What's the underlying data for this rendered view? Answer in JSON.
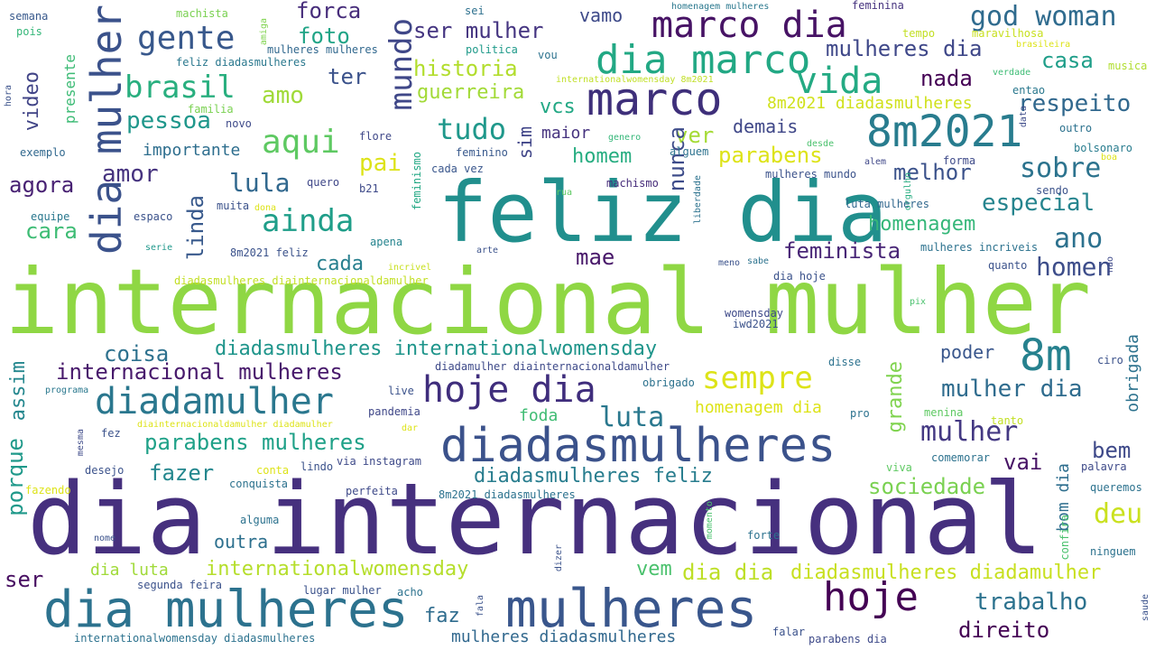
{
  "words": [
    {
      "text": "dia internacional",
      "color": "#46307e"
    },
    {
      "text": "internacional mulher",
      "color": "#8fd744"
    },
    {
      "text": "feliz dia",
      "color": "#218f8d"
    },
    {
      "text": "diadasmulheres",
      "color": "#3b528b"
    },
    {
      "text": "mulheres",
      "color": "#39568c"
    },
    {
      "text": "dia mulheres",
      "color": "#2c728e"
    },
    {
      "text": "marco",
      "color": "#3e2f7a"
    },
    {
      "text": "dia mulher",
      "color": "#3b528b"
    },
    {
      "text": "8m2021",
      "color": "#287c8e"
    },
    {
      "text": "marco dia",
      "color": "#471365"
    },
    {
      "text": "dia marco",
      "color": "#22a884"
    },
    {
      "text": "hoje dia",
      "color": "#3f2d7c"
    },
    {
      "text": "diadamulher",
      "color": "#2a778e"
    },
    {
      "text": "8m",
      "color": "#26818e"
    },
    {
      "text": "hoje",
      "color": "#440154"
    },
    {
      "text": "vida",
      "color": "#24aa83"
    },
    {
      "text": "gente",
      "color": "#38588c"
    },
    {
      "text": "brasil",
      "color": "#29af7f"
    },
    {
      "text": "aqui",
      "color": "#5ec962"
    },
    {
      "text": "ainda",
      "color": "#1f9e89"
    },
    {
      "text": "tudo",
      "color": "#1f988b"
    },
    {
      "text": "sempre",
      "color": "#dde318"
    },
    {
      "text": "luta",
      "color": "#2a788e"
    },
    {
      "text": "deu",
      "color": "#cae11f"
    },
    {
      "text": "god woman",
      "color": "#2f6b8e"
    },
    {
      "text": "mulheres dia",
      "color": "#3f4889"
    },
    {
      "text": "sobre",
      "color": "#2c738e"
    },
    {
      "text": "ano",
      "color": "#2c718e"
    },
    {
      "text": "homen",
      "color": "#3d4d8a"
    },
    {
      "text": "mulher dia",
      "color": "#2f6c8e"
    },
    {
      "text": "mulher",
      "color": "#443983"
    },
    {
      "text": "mundo",
      "color": "#3f4788"
    },
    {
      "text": "ser mulher",
      "color": "#453581"
    },
    {
      "text": "historia",
      "color": "#b2dd2d"
    },
    {
      "text": "guerreira",
      "color": "#a2da37"
    },
    {
      "text": "feminista",
      "color": "#482576"
    },
    {
      "text": "parabens mulheres",
      "color": "#1fa188"
    },
    {
      "text": "internacional mulheres",
      "color": "#481a6c"
    },
    {
      "text": "diadasmulheres internationalwomensday",
      "color": "#1f958b"
    },
    {
      "text": "diadasmulheres feliz",
      "color": "#287d8e"
    },
    {
      "text": "internationalwomensday",
      "color": "#b5de2b"
    },
    {
      "text": "diadasmulheres diadamulher",
      "color": "#c8e020"
    },
    {
      "text": "mulheres diadasmulheres",
      "color": "#31688e"
    },
    {
      "text": "trabalho",
      "color": "#2c728e"
    },
    {
      "text": "direito",
      "color": "#440154"
    },
    {
      "text": "sociedade",
      "color": "#7ad151"
    },
    {
      "text": "especial",
      "color": "#25848e"
    },
    {
      "text": "homenagem",
      "color": "#35b779"
    },
    {
      "text": "respeito",
      "color": "#31688e"
    },
    {
      "text": "parabens",
      "color": "#dde318"
    },
    {
      "text": "melhor",
      "color": "#3b528b"
    },
    {
      "text": "nada",
      "color": "#440154"
    },
    {
      "text": "casa",
      "color": "#1f9e89"
    },
    {
      "text": "forca",
      "color": "#472d7b"
    },
    {
      "text": "foto",
      "color": "#20a486"
    },
    {
      "text": "vamo",
      "color": "#3e4a89"
    },
    {
      "text": "amo",
      "color": "#a0da39"
    },
    {
      "text": "ter",
      "color": "#3b528b"
    },
    {
      "text": "vcs",
      "color": "#22a884"
    },
    {
      "text": "pai",
      "color": "#dde318"
    },
    {
      "text": "ver",
      "color": "#a5db36"
    },
    {
      "text": "homem",
      "color": "#27ad81"
    },
    {
      "text": "maior",
      "color": "#46337f"
    },
    {
      "text": "sim",
      "color": "#404588"
    },
    {
      "text": "nunca",
      "color": "#3e4c8a"
    },
    {
      "text": "demais",
      "color": "#3f4788"
    },
    {
      "text": "8m2021 diadasmulheres",
      "color": "#d0e11c"
    },
    {
      "text": "internationalwomensday 8m2021",
      "color": "#c0df25"
    },
    {
      "text": "mae",
      "color": "#48186a"
    },
    {
      "text": "cada",
      "color": "#277f8e"
    },
    {
      "text": "lula",
      "color": "#31688e"
    },
    {
      "text": "linda",
      "color": "#38598c"
    },
    {
      "text": "amor",
      "color": "#46337f"
    },
    {
      "text": "agora",
      "color": "#482173"
    },
    {
      "text": "cara",
      "color": "#3dbc74"
    },
    {
      "text": "pessoa",
      "color": "#1f978b"
    },
    {
      "text": "importante",
      "color": "#2e6e8e"
    },
    {
      "text": "video",
      "color": "#414487"
    },
    {
      "text": "presente",
      "color": "#3cbb75"
    },
    {
      "text": "coisa",
      "color": "#2d718e"
    },
    {
      "text": "grande",
      "color": "#7fd34e"
    },
    {
      "text": "poder",
      "color": "#39568c"
    },
    {
      "text": "bem",
      "color": "#3e4989"
    },
    {
      "text": "vai",
      "color": "#471365"
    },
    {
      "text": "assim",
      "color": "#24878e"
    },
    {
      "text": "porque",
      "color": "#1f998a"
    },
    {
      "text": "fazer",
      "color": "#24878e"
    },
    {
      "text": "outra",
      "color": "#2d708e"
    },
    {
      "text": "homenagem dia",
      "color": "#dde318"
    },
    {
      "text": "foda",
      "color": "#3fbc73"
    },
    {
      "text": "faz",
      "color": "#2f6c8e"
    },
    {
      "text": "vem",
      "color": "#4ac16d"
    },
    {
      "text": "dia dia",
      "color": "#bddf26"
    },
    {
      "text": "dia luta",
      "color": "#a0da39"
    },
    {
      "text": "ser",
      "color": "#470e61"
    },
    {
      "text": "obrigada",
      "color": "#2c728e"
    },
    {
      "text": "bom dia",
      "color": "#2e6e8e"
    },
    {
      "text": "semana",
      "color": "#38598c"
    },
    {
      "text": "pois",
      "color": "#35b779"
    },
    {
      "text": "hora",
      "color": "#3b528b"
    },
    {
      "text": "machista",
      "color": "#7ad151"
    },
    {
      "text": "amiga",
      "color": "#7fd34e"
    },
    {
      "text": "mulheres mulheres",
      "color": "#31688e"
    },
    {
      "text": "feliz diadasmulheres",
      "color": "#2a788e"
    },
    {
      "text": "familia",
      "color": "#7ad151"
    },
    {
      "text": "exemplo",
      "color": "#31688e"
    },
    {
      "text": "novo",
      "color": "#3e4a89"
    },
    {
      "text": "sei",
      "color": "#2d708e"
    },
    {
      "text": "politica",
      "color": "#1f9a8a"
    },
    {
      "text": "vou",
      "color": "#2c728e"
    },
    {
      "text": "feminino",
      "color": "#38588c"
    },
    {
      "text": "cada vez",
      "color": "#39568c"
    },
    {
      "text": "feminismo",
      "color": "#22a884"
    },
    {
      "text": "flore",
      "color": "#3f4889"
    },
    {
      "text": "genero",
      "color": "#35b779"
    },
    {
      "text": "alguem",
      "color": "#2c728e"
    },
    {
      "text": "homenagem mulheres",
      "color": "#2a788e"
    },
    {
      "text": "feminina",
      "color": "#46337f"
    },
    {
      "text": "tempo",
      "color": "#c2df23"
    },
    {
      "text": "maravilhosa",
      "color": "#c8e020"
    },
    {
      "text": "brasileira",
      "color": "#dde318"
    },
    {
      "text": "musica",
      "color": "#b0dd2f"
    },
    {
      "text": "verdade",
      "color": "#3dbc74"
    },
    {
      "text": "entao",
      "color": "#2a788e"
    },
    {
      "text": "data",
      "color": "#3e4c8a"
    },
    {
      "text": "outro",
      "color": "#2c728e"
    },
    {
      "text": "bolsonaro",
      "color": "#287c8e"
    },
    {
      "text": "boa",
      "color": "#dde318"
    },
    {
      "text": "desde",
      "color": "#4ac16d"
    },
    {
      "text": "alem",
      "color": "#3f4788"
    },
    {
      "text": "forma",
      "color": "#3e4a89"
    },
    {
      "text": "sendo",
      "color": "#3b528b"
    },
    {
      "text": "orgulho",
      "color": "#27ad81"
    },
    {
      "text": "liberdade",
      "color": "#2c728e"
    },
    {
      "text": "mulheres mundo",
      "color": "#3b528b"
    },
    {
      "text": "luta mulheres",
      "color": "#31688e"
    },
    {
      "text": "quero",
      "color": "#3f4788"
    },
    {
      "text": "b21",
      "color": "#3e4a89"
    },
    {
      "text": "machismo",
      "color": "#472d7b"
    },
    {
      "text": "rua",
      "color": "#5ec962"
    },
    {
      "text": "muita",
      "color": "#3b528b"
    },
    {
      "text": "dona",
      "color": "#dde318"
    },
    {
      "text": "equipe",
      "color": "#2a788e"
    },
    {
      "text": "espaco",
      "color": "#3b528b"
    },
    {
      "text": "serie",
      "color": "#1f988b"
    },
    {
      "text": "apena",
      "color": "#25848e"
    },
    {
      "text": "arte",
      "color": "#3b528b"
    },
    {
      "text": "8m2021 feliz",
      "color": "#3b528b"
    },
    {
      "text": "mulheres incriveis",
      "color": "#2c728e"
    },
    {
      "text": "nao",
      "color": "#3e4989"
    },
    {
      "text": "meno",
      "color": "#3b528b"
    },
    {
      "text": "sabe",
      "color": "#2c728e"
    },
    {
      "text": "quanto",
      "color": "#3b528b"
    },
    {
      "text": "diadasmulheres diainternacionaldamulher",
      "color": "#c2df23"
    },
    {
      "text": "incrivel",
      "color": "#c8e020"
    },
    {
      "text": "dia hoje",
      "color": "#3b528b"
    },
    {
      "text": "pix",
      "color": "#4ac16d"
    },
    {
      "text": "womensday",
      "color": "#3e4a89"
    },
    {
      "text": "iwd2021",
      "color": "#3b528b"
    },
    {
      "text": "diadamulher diainternacionaldamulher",
      "color": "#3e4a89"
    },
    {
      "text": "disse",
      "color": "#2c728e"
    },
    {
      "text": "ciro",
      "color": "#3b528b"
    },
    {
      "text": "obrigado",
      "color": "#2c728e"
    },
    {
      "text": "programa",
      "color": "#2a788e"
    },
    {
      "text": "live",
      "color": "#3b528b"
    },
    {
      "text": "pandemia",
      "color": "#3f4788"
    },
    {
      "text": "pro",
      "color": "#2c728e"
    },
    {
      "text": "menina",
      "color": "#5ec962"
    },
    {
      "text": "tanto",
      "color": "#c2df23"
    },
    {
      "text": "diainternacionaldamulher diadamulher",
      "color": "#dde318"
    },
    {
      "text": "dar",
      "color": "#dde318"
    },
    {
      "text": "mesma",
      "color": "#3e4a89"
    },
    {
      "text": "fez",
      "color": "#3b528b"
    },
    {
      "text": "via instagram",
      "color": "#3e4a89"
    },
    {
      "text": "lindo",
      "color": "#3b528b"
    },
    {
      "text": "conta",
      "color": "#dde318"
    },
    {
      "text": "desejo",
      "color": "#3b528b"
    },
    {
      "text": "conquista",
      "color": "#2c728e"
    },
    {
      "text": "viva",
      "color": "#5ec962"
    },
    {
      "text": "comemorar",
      "color": "#2c728e"
    },
    {
      "text": "palavra",
      "color": "#3e4a89"
    },
    {
      "text": "queremos",
      "color": "#2c728e"
    },
    {
      "text": "fazendo",
      "color": "#dde318"
    },
    {
      "text": "perfeita",
      "color": "#3e4a89"
    },
    {
      "text": "8m2021 diadasmulheres",
      "color": "#2c728e"
    },
    {
      "text": "alguma",
      "color": "#2c728e"
    },
    {
      "text": "momento",
      "color": "#4ac16d"
    },
    {
      "text": "forte",
      "color": "#2c728e"
    },
    {
      "text": "confira",
      "color": "#4ac16d"
    },
    {
      "text": "nome",
      "color": "#3b528b"
    },
    {
      "text": "ninguem",
      "color": "#2c728e"
    },
    {
      "text": "dizer",
      "color": "#3b528b"
    },
    {
      "text": "segunda feira",
      "color": "#3b528b"
    },
    {
      "text": "lugar mulher",
      "color": "#3b528b"
    },
    {
      "text": "acho",
      "color": "#2c728e"
    },
    {
      "text": "fala",
      "color": "#3b528b"
    },
    {
      "text": "saude",
      "color": "#3b528b"
    },
    {
      "text": "falar",
      "color": "#3b528b"
    },
    {
      "text": "parabens dia",
      "color": "#3e4a89"
    },
    {
      "text": "internationalwomensday diadasmulheres",
      "color": "#2c728e"
    }
  ]
}
